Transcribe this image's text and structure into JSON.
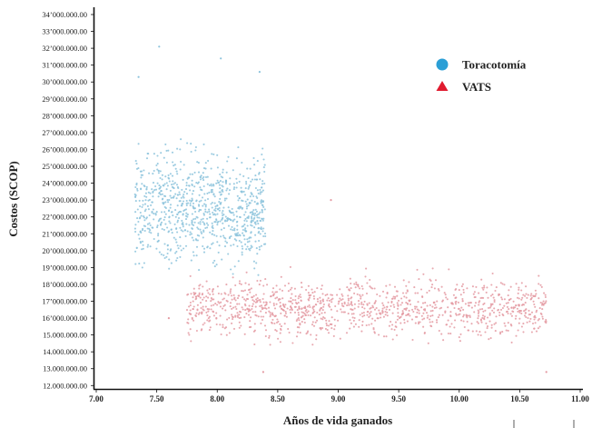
{
  "chart_data": {
    "type": "scatter",
    "xlabel": "Años de vida ganados",
    "ylabel": "Costos (SCOP)",
    "xlim": [
      7.0,
      11.0
    ],
    "ylim": [
      11800000,
      34000000
    ],
    "x_ticks": [
      {
        "value": 7.0,
        "label": "7.00"
      },
      {
        "value": 7.5,
        "label": "7.50"
      },
      {
        "value": 8.0,
        "label": "8.00"
      },
      {
        "value": 8.5,
        "label": "8.50"
      },
      {
        "value": 9.0,
        "label": "9.00"
      },
      {
        "value": 9.5,
        "label": "9.50"
      },
      {
        "value": 10.0,
        "label": "10.00"
      },
      {
        "value": 10.5,
        "label": "10.50"
      },
      {
        "value": 11.0,
        "label": "11.00"
      }
    ],
    "y_ticks": [
      {
        "value": 12000000,
        "label": "12.000.000.00"
      },
      {
        "value": 13000000,
        "label": "13.000.000.00"
      },
      {
        "value": 14000000,
        "label": "14.000.000.00"
      },
      {
        "value": 15000000,
        "label": "15.000.000.00"
      },
      {
        "value": 16000000,
        "label": "16’000.000.00"
      },
      {
        "value": 17000000,
        "label": "17’000.000.00"
      },
      {
        "value": 18000000,
        "label": "18’000.000.00"
      },
      {
        "value": 19000000,
        "label": "19’000.000.00"
      },
      {
        "value": 20000000,
        "label": "20’000.000.00"
      },
      {
        "value": 21000000,
        "label": "21’000.000.00"
      },
      {
        "value": 22000000,
        "label": "22’000.000.00"
      },
      {
        "value": 23000000,
        "label": "23’000.000.00"
      },
      {
        "value": 24000000,
        "label": "24’000.000.00"
      },
      {
        "value": 25000000,
        "label": "25’000.000.00"
      },
      {
        "value": 26000000,
        "label": "26’000.000.00"
      },
      {
        "value": 27000000,
        "label": "27’000.000.00"
      },
      {
        "value": 28000000,
        "label": "28’000.000.00"
      },
      {
        "value": 29000000,
        "label": "29’000.000.00"
      },
      {
        "value": 30000000,
        "label": "30’000.000.00"
      },
      {
        "value": 31000000,
        "label": "31’000.000.00"
      },
      {
        "value": 32000000,
        "label": "32’000.000.00"
      },
      {
        "value": 33000000,
        "label": "33’000.000.00"
      },
      {
        "value": 34000000,
        "label": "34’000.000.00"
      }
    ],
    "grid": false,
    "legend_position": "top-right",
    "series": [
      {
        "name": "Toracotomía",
        "marker": "circle",
        "color": "#2b9fd6",
        "point_color": "#8cc3dc",
        "x_range": [
          7.32,
          8.4
        ],
        "y_center": 22500000,
        "y_spread": 2800000,
        "n_points": 900
      },
      {
        "name": "VATS",
        "marker": "triangle",
        "color": "#e01b2f",
        "point_color": "#e49aa2",
        "x_range": [
          7.75,
          10.72
        ],
        "y_center": 16600000,
        "y_spread": 1500000,
        "n_points": 1200
      }
    ],
    "outlier_points": [
      {
        "x": 7.52,
        "y": 32100000
      },
      {
        "x": 8.03,
        "y": 31400000
      },
      {
        "x": 7.35,
        "y": 30300000
      },
      {
        "x": 8.35,
        "y": 30600000
      },
      {
        "x": 8.94,
        "y": 23000000
      },
      {
        "x": 7.6,
        "y": 16000000
      },
      {
        "x": 8.38,
        "y": 12800000
      },
      {
        "x": 10.72,
        "y": 12800000
      }
    ]
  }
}
